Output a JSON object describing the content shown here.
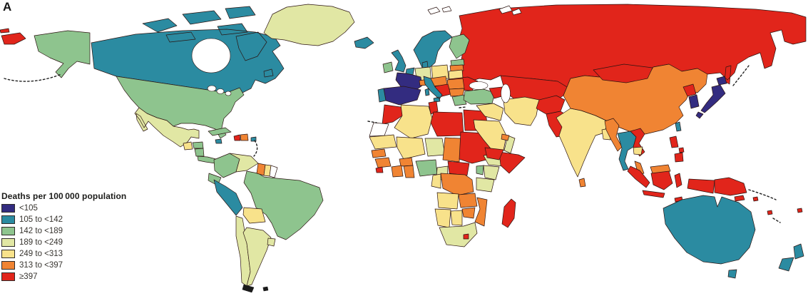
{
  "figure": {
    "panel_label": "A",
    "type": "choropleth-world-map"
  },
  "legend": {
    "title": "Deaths per 100 000 population",
    "categories": [
      {
        "label": "<105",
        "color": "#332c80"
      },
      {
        "label": "105 to <142",
        "color": "#2b8ba1"
      },
      {
        "label": "142 to <189",
        "color": "#8ec48e"
      },
      {
        "label": "189 to <249",
        "color": "#e1e7a4"
      },
      {
        "label": "249 to <313",
        "color": "#f8e28b"
      },
      {
        "label": "313 to <397",
        "color": "#f08433"
      },
      {
        "label": "≥397",
        "color": "#e1251b"
      }
    ]
  },
  "map": {
    "border_color": "#2b1411",
    "no_data_color": "#ffffff",
    "ocean_color": "#ffffff",
    "regions": {
      "alaska": 2,
      "canada": 1,
      "greenland": 3,
      "usa": 2,
      "mexico": 3,
      "guatemala": 4,
      "honduras": 2,
      "nicaragua": 2,
      "costa_rica_panama": 2,
      "cuba": 2,
      "jamaica": 1,
      "haiti": 6,
      "dominican_republic": 5,
      "puerto_rico": 1,
      "colombia": 2,
      "venezuela": 3,
      "guyana": 5,
      "suriname": 4,
      "french_guiana": null,
      "ecuador": 2,
      "peru": 1,
      "brazil": 2,
      "bolivia": 4,
      "chile": 3,
      "argentina": 3,
      "uruguay": 3,
      "iceland": 1,
      "ireland": 2,
      "uk": 1,
      "norway_sweden": 1,
      "finland": 2,
      "denmark": 1,
      "baltics_north": 2,
      "baltics_south": 5,
      "netherlands_belgium": 1,
      "germany": 3,
      "poland": 4,
      "belarus": 4,
      "ukraine": 6,
      "france": 0,
      "spain": 0,
      "portugal": 1,
      "switzerland_alps": 5,
      "czech_austria": 5,
      "romania": 5,
      "balkans_west": 6,
      "bulgaria": 5,
      "italy": 1,
      "greece": 2,
      "turkey": 2,
      "caucasus": 6,
      "russia": 6,
      "kazakhstan_central_asia": 6,
      "mongolia": 6,
      "morocco": 6,
      "western_sahara": null,
      "algeria": 4,
      "tunisia": 6,
      "libya": 6,
      "egypt": 6,
      "mauritania": 4,
      "mali": 4,
      "niger": 3,
      "chad": 5,
      "sudan": 6,
      "senegal": 5,
      "guinea": 5,
      "sierra_leone": 6,
      "ivory_coast": 5,
      "burkina": 5,
      "ghana": 5,
      "nigeria": 2,
      "cameroon": 3,
      "car": 6,
      "ethiopia": 3,
      "somalia": 6,
      "kenya": 3,
      "uganda": 2,
      "tanzania": 3,
      "drc": 5,
      "congo_gabon": 4,
      "angola": 4,
      "zambia": 5,
      "mozambique": 5,
      "zimbabwe": 5,
      "botswana": 4,
      "namibia": 4,
      "south_africa": 3,
      "lesotho": 6,
      "madagascar": 6,
      "syria_iraq": 4,
      "iran": 4,
      "saudi_arabia": 4,
      "yemen": 6,
      "oman": 3,
      "uae": 5,
      "afghanistan": 6,
      "pakistan": 6,
      "india": 4,
      "sri_lanka": 5,
      "bangladesh": 4,
      "china": 5,
      "mongolia_note": 6,
      "north_korea": 6,
      "south_korea": 0,
      "japan": 0,
      "taiwan": 1,
      "myanmar": 5,
      "thailand": 1,
      "vietnam": 6,
      "cambodia": 4,
      "malaysia_peninsula": 5,
      "malaysia_borneo": 5,
      "indonesia": 6,
      "philippines": 6,
      "papua_new_guinea": 6,
      "pacific_islands": 6,
      "australia": 1,
      "tasmania": 1,
      "new_zealand": 1
    }
  }
}
